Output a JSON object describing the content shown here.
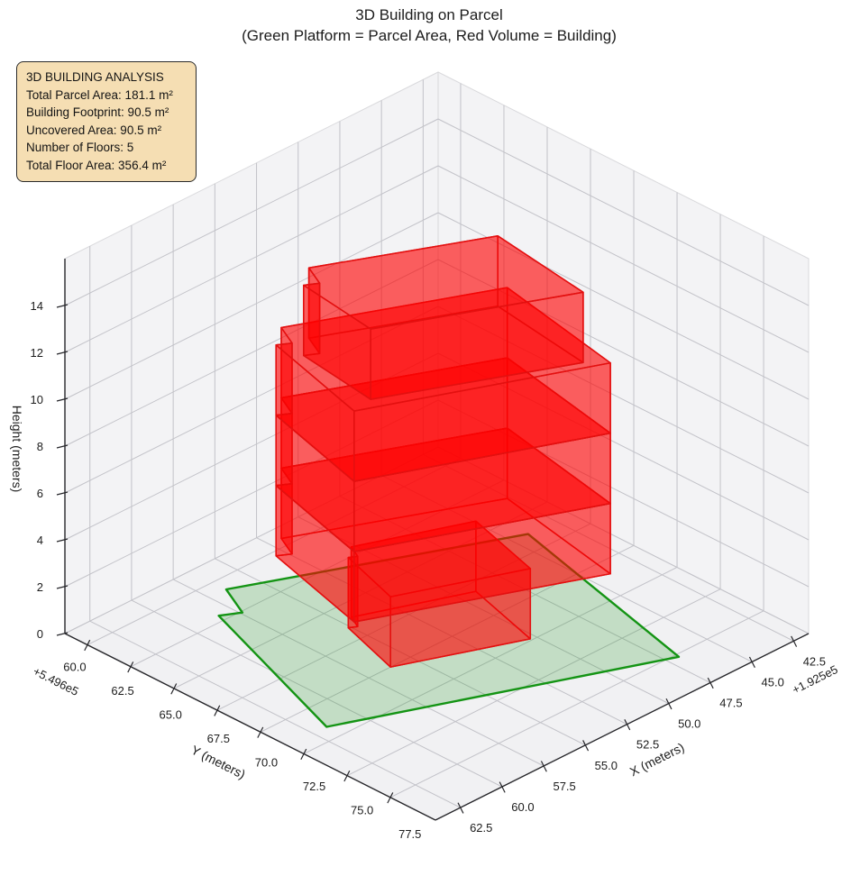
{
  "title": {
    "line1": "3D Building on Parcel",
    "line2": "(Green Platform = Parcel Area, Red Volume = Building)"
  },
  "info_box": {
    "bg_color": "#f5deb3",
    "lines": [
      "3D BUILDING ANALYSIS",
      "Total Parcel Area: 181.1 m²",
      "Building Footprint: 90.5 m²",
      "Uncovered Area: 90.5 m²",
      "Number of Floors: 5",
      "Total Floor Area: 356.4 m²"
    ]
  },
  "chart_data": {
    "type": "3d-building-plot",
    "legend_meaning": {
      "green_platform": "Parcel Area",
      "red_volume": "Building"
    },
    "axes": {
      "x": {
        "label": "X (meters)",
        "offset_text": "+1.925e5",
        "ticks": [
          42.5,
          45.0,
          47.5,
          50.0,
          52.5,
          55.0,
          57.5,
          60.0,
          62.5
        ],
        "range": [
          41.6,
          64.0
        ]
      },
      "y": {
        "label": "Y (meters)",
        "offset_text": "+5.496e5",
        "ticks": [
          60.0,
          62.5,
          65.0,
          67.5,
          70.0,
          72.5,
          75.0,
          77.5
        ],
        "range": [
          58.7,
          80.1
        ]
      },
      "z": {
        "label": "Height (meters)",
        "ticks": [
          0,
          2,
          4,
          6,
          8,
          10,
          12,
          14
        ],
        "range": [
          0,
          16
        ]
      }
    },
    "parcel": {
      "z": 0,
      "fill": "rgba(0,140,0,0.19)",
      "edge": "#149414",
      "polygon": [
        [
          44.1,
          66.3
        ],
        [
          56.5,
          60.8
        ],
        [
          57.4,
          62.6
        ],
        [
          58.3,
          62.1
        ],
        [
          61.7,
          71.6
        ],
        [
          46.9,
          77.7
        ]
      ]
    },
    "building": {
      "fill": "rgba(255,0,0,0.38)",
      "edge": "#e31010",
      "floor_height_m": 3,
      "floors": [
        {
          "name": "floor-1",
          "z0": 0,
          "z1": 3,
          "footprint": [
            [
              49.1,
              68.1
            ],
            [
              54.4,
              66.0
            ],
            [
              54.76,
              66.72
            ],
            [
              55.12,
              66.52
            ],
            [
              56.2,
              70.0
            ],
            [
              50.3,
              72.4
            ]
          ]
        },
        {
          "name": "floor-2",
          "z0": 3,
          "z1": 6,
          "footprint": [
            [
              46.8,
              67.7
            ],
            [
              56.0,
              63.5
            ],
            [
              56.6,
              64.7
            ],
            [
              57.2,
              64.35
            ],
            [
              58.8,
              70.4
            ],
            [
              48.2,
              75.0
            ]
          ]
        },
        {
          "name": "floor-3",
          "z0": 6,
          "z1": 9,
          "footprint": [
            [
              46.8,
              67.7
            ],
            [
              56.0,
              63.5
            ],
            [
              56.6,
              64.7
            ],
            [
              57.2,
              64.35
            ],
            [
              58.8,
              70.4
            ],
            [
              48.2,
              75.0
            ]
          ]
        },
        {
          "name": "floor-4",
          "z0": 9,
          "z1": 12,
          "footprint": [
            [
              46.8,
              67.7
            ],
            [
              56.0,
              63.5
            ],
            [
              56.6,
              64.7
            ],
            [
              57.2,
              64.35
            ],
            [
              58.8,
              70.4
            ],
            [
              48.2,
              75.0
            ]
          ]
        },
        {
          "name": "floor-5",
          "z0": 12,
          "z1": 15,
          "footprint": [
            [
              48.2,
              68.5
            ],
            [
              55.8,
              64.9
            ],
            [
              56.4,
              66.1
            ],
            [
              57.0,
              65.75
            ],
            [
              57.6,
              70.2
            ],
            [
              49.0,
              74.2
            ]
          ]
        }
      ]
    },
    "style": {
      "pane_wall": "#f3f3f5",
      "pane_floor": "#f1f1f3",
      "pane_border": "#d9d9dc",
      "grid": "#c2c2c8",
      "axis_line": "#26262a"
    }
  }
}
